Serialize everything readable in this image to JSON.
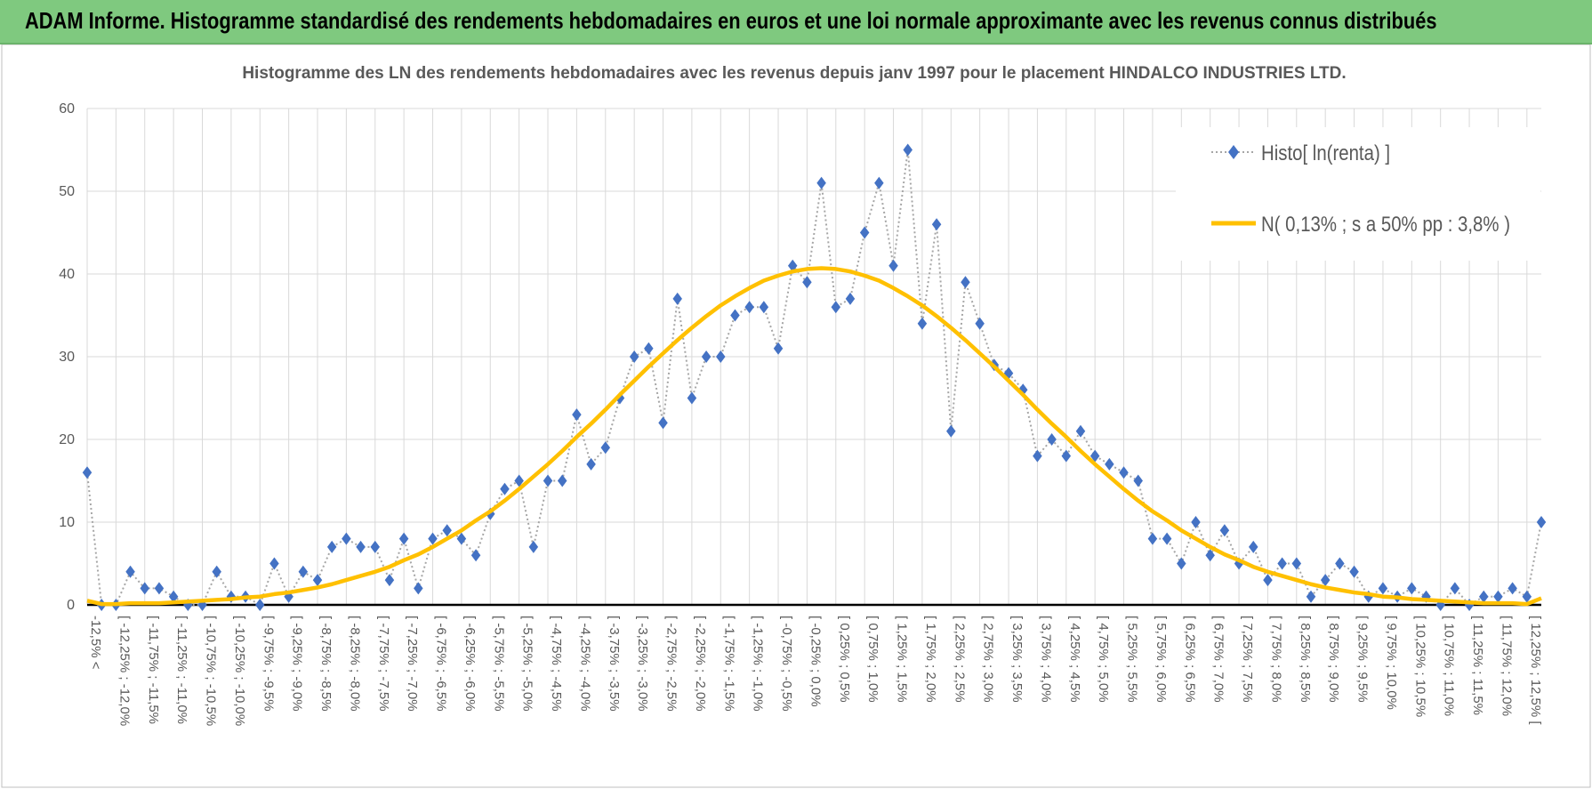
{
  "header": {
    "title": "ADAM Informe. Histogramme standardisé des rendements hebdomadaires en euros et une loi normale approximante avec les revenus connus distribués"
  },
  "chart_data": {
    "type": "line",
    "title": "Histogramme des LN des rendements hebdomadaires avec les revenus depuis janv 1997 pour le placement HINDALCO INDUSTRIES LTD.",
    "categories": [
      "-12,5% <",
      null,
      "[ -12,25% ; -12,0%",
      null,
      "[ -11,75% ; -11,5%",
      null,
      "[ -11,25% ; -11,0%",
      null,
      "[ -10,75% ; -10,5%",
      null,
      "[ -10,25% ; -10,0%",
      null,
      "[ -9,75% ; -9,5%",
      null,
      "[ -9,25% ; -9,0%",
      null,
      "[ -8,75% ; -8,5%",
      null,
      "[ -8,25% ; -8,0%",
      null,
      "[ -7,75% ; -7,5%",
      null,
      "[ -7,25% ; -7,0%",
      null,
      "[ -6,75% ; -6,5%",
      null,
      "[ -6,25% ; -6,0%",
      null,
      "[ -5,75% ; -5,5%",
      null,
      "[ -5,25% ; -5,0%",
      null,
      "[ -4,75% ; -4,5%",
      null,
      "[ -4,25% ; -4,0%",
      null,
      "[ -3,75% ; -3,5%",
      null,
      "[ -3,25% ; -3,0%",
      null,
      "[ -2,75% ; -2,5%",
      null,
      "[ -2,25% ; -2,0%",
      null,
      "[ -1,75% ; -1,5%",
      null,
      "[ -1,25% ; -1,0%",
      null,
      "[ -0,75% ; -0,5%",
      null,
      "[ -0,25% ; 0,0%",
      null,
      "[ 0,25% ; 0,5%",
      null,
      "[ 0,75% ; 1,0%",
      null,
      "[ 1,25% ; 1,5%",
      null,
      "[ 1,75% ; 2,0%",
      null,
      "[ 2,25% ; 2,5%",
      null,
      "[ 2,75% ; 3,0%",
      null,
      "[ 3,25% ; 3,5%",
      null,
      "[ 3,75% ; 4,0%",
      null,
      "[ 4,25% ; 4,5%",
      null,
      "[ 4,75% ; 5,0%",
      null,
      "[ 5,25% ; 5,5%",
      null,
      "[ 5,75% ; 6,0%",
      null,
      "[ 6,25% ; 6,5%",
      null,
      "[ 6,75% ; 7,0%",
      null,
      "[ 7,25% ; 7,5%",
      null,
      "[ 7,75% ; 8,0%",
      null,
      "[ 8,25% ; 8,5%",
      null,
      "[ 8,75% ; 9,0%",
      null,
      "[ 9,25% ; 9,5%",
      null,
      "[ 9,75% ; 10,0%",
      null,
      "[ 10,25% ; 10,5%",
      null,
      "[ 10,75% ; 11,0%",
      null,
      "[ 11,25% ; 11,5%",
      null,
      "[ 11,75% ; 12,0%",
      null,
      "[ 12,25% ; 12,5% [",
      null
    ],
    "series": [
      {
        "name": "Histo[ ln(renta) ]",
        "color": "#4472c4",
        "line_color": "#a6a6a6",
        "line_style": "dotted",
        "marker": "diamond",
        "values": [
          16,
          0,
          0,
          4,
          2,
          2,
          1,
          0,
          0,
          4,
          1,
          1,
          0,
          5,
          1,
          4,
          3,
          7,
          8,
          7,
          7,
          3,
          8,
          2,
          8,
          9,
          8,
          6,
          11,
          14,
          15,
          7,
          15,
          15,
          23,
          17,
          19,
          25,
          30,
          31,
          22,
          37,
          25,
          30,
          30,
          35,
          36,
          36,
          31,
          41,
          39,
          51,
          36,
          37,
          45,
          51,
          41,
          55,
          34,
          46,
          21,
          39,
          34,
          29,
          28,
          26,
          18,
          20,
          18,
          21,
          18,
          17,
          16,
          15,
          8,
          8,
          5,
          10,
          6,
          9,
          5,
          7,
          3,
          5,
          5,
          1,
          3,
          5,
          4,
          1,
          2,
          1,
          2,
          1,
          0,
          2,
          0,
          1,
          1,
          2,
          1,
          10
        ]
      },
      {
        "name": "N( 0,13% ; s a 50% pp : 3,8% )",
        "color": "#ffc000",
        "line_style": "solid",
        "marker": "none",
        "values": [
          0.5,
          0.1,
          0.1,
          0.2,
          0.2,
          0.2,
          0.3,
          0.4,
          0.5,
          0.6,
          0.7,
          0.9,
          1.0,
          1.3,
          1.5,
          1.8,
          2.1,
          2.5,
          3.0,
          3.5,
          4.0,
          4.6,
          5.4,
          6.1,
          7.0,
          8.0,
          9.0,
          10.2,
          11.3,
          12.6,
          14.0,
          15.5,
          17.0,
          18.6,
          20.3,
          21.9,
          23.6,
          25.4,
          27.1,
          28.8,
          30.4,
          32.0,
          33.5,
          34.9,
          36.2,
          37.3,
          38.3,
          39.2,
          39.8,
          40.3,
          40.6,
          40.7,
          40.6,
          40.3,
          39.8,
          39.2,
          38.3,
          37.3,
          36.2,
          34.9,
          33.5,
          32.0,
          30.4,
          28.8,
          27.1,
          25.4,
          23.6,
          21.9,
          20.3,
          18.6,
          17.0,
          15.5,
          14.0,
          12.6,
          11.3,
          10.2,
          9.0,
          8.0,
          7.0,
          6.1,
          5.4,
          4.6,
          4.0,
          3.5,
          3.0,
          2.5,
          2.1,
          1.8,
          1.5,
          1.3,
          1.0,
          0.9,
          0.7,
          0.6,
          0.5,
          0.4,
          0.3,
          0.2,
          0.2,
          0.2,
          0.1,
          0.8
        ]
      }
    ],
    "ylim": [
      0,
      60
    ],
    "yticks": [
      0,
      10,
      20,
      30,
      40,
      50,
      60
    ],
    "grid": true,
    "legend": "top-right"
  }
}
